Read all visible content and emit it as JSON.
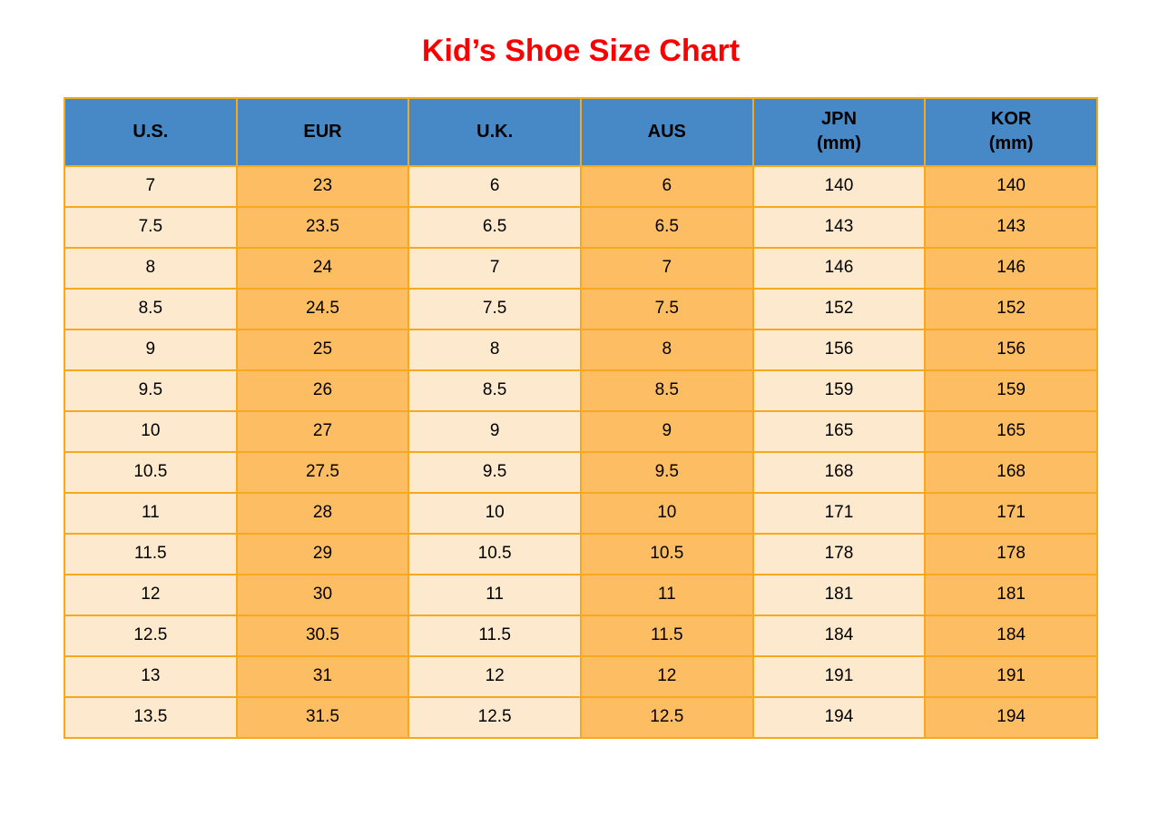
{
  "title": "Kid’s Shoe Size Chart",
  "colors": {
    "title_red": "#fb0000",
    "header_blue": "#4689c6",
    "cell_cream": "#fde9ce",
    "cell_orange": "#fcbd63",
    "border_orange": "#f7a81c"
  },
  "chart_data": {
    "type": "table",
    "title": "Kid’s Shoe Size Chart",
    "layout_hints": {
      "header_background": "blue",
      "column_fill_alternation": [
        "cream",
        "orange",
        "cream",
        "orange",
        "cream",
        "orange"
      ],
      "grid": "on"
    },
    "columns": [
      {
        "label": "U.S.",
        "sub": ""
      },
      {
        "label": "EUR",
        "sub": ""
      },
      {
        "label": "U.K.",
        "sub": ""
      },
      {
        "label": "AUS",
        "sub": ""
      },
      {
        "label": "JPN",
        "sub": "(mm)"
      },
      {
        "label": "KOR",
        "sub": "(mm)"
      }
    ],
    "rows": [
      [
        "7",
        "23",
        "6",
        "6",
        "140",
        "140"
      ],
      [
        "7.5",
        "23.5",
        "6.5",
        "6.5",
        "143",
        "143"
      ],
      [
        "8",
        "24",
        "7",
        "7",
        "146",
        "146"
      ],
      [
        "8.5",
        "24.5",
        "7.5",
        "7.5",
        "152",
        "152"
      ],
      [
        "9",
        "25",
        "8",
        "8",
        "156",
        "156"
      ],
      [
        "9.5",
        "26",
        "8.5",
        "8.5",
        "159",
        "159"
      ],
      [
        "10",
        "27",
        "9",
        "9",
        "165",
        "165"
      ],
      [
        "10.5",
        "27.5",
        "9.5",
        "9.5",
        "168",
        "168"
      ],
      [
        "11",
        "28",
        "10",
        "10",
        "171",
        "171"
      ],
      [
        "11.5",
        "29",
        "10.5",
        "10.5",
        "178",
        "178"
      ],
      [
        "12",
        "30",
        "11",
        "11",
        "181",
        "181"
      ],
      [
        "12.5",
        "30.5",
        "11.5",
        "11.5",
        "184",
        "184"
      ],
      [
        "13",
        "31",
        "12",
        "12",
        "191",
        "191"
      ],
      [
        "13.5",
        "31.5",
        "12.5",
        "12.5",
        "194",
        "194"
      ]
    ]
  }
}
